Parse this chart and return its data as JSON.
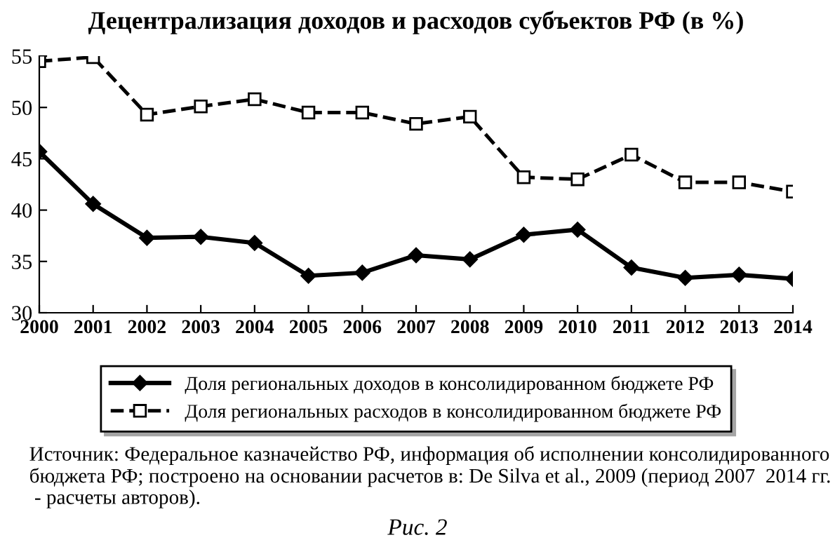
{
  "chart_data": {
    "type": "line",
    "title": "Децентрализация доходов и расходов субъектов РФ (в %)",
    "categories": [
      "2000",
      "2001",
      "2002",
      "2003",
      "2004",
      "2005",
      "2006",
      "2007",
      "2008",
      "2009",
      "2010",
      "2011",
      "2012",
      "2013",
      "2014"
    ],
    "series": [
      {
        "name": "Доля региональных доходов в консолидированном бюджете РФ",
        "color": "#000000",
        "marker": "diamond",
        "line_style": "solid",
        "values": [
          45.7,
          40.6,
          37.3,
          37.4,
          36.8,
          33.6,
          33.9,
          35.6,
          35.2,
          37.6,
          38.1,
          34.4,
          33.4,
          33.7,
          33.3
        ]
      },
      {
        "name": "Доля региональных расходов в консолидированном бюджете РФ",
        "color": "#000000",
        "marker": "square",
        "line_style": "dashed",
        "values": [
          54.5,
          54.9,
          49.3,
          50.1,
          50.8,
          49.5,
          49.5,
          48.4,
          49.1,
          43.2,
          43.0,
          45.4,
          42.7,
          42.7,
          41.8
        ]
      }
    ],
    "ylim": [
      30,
      55
    ],
    "yticks": [
      30,
      35,
      40,
      45,
      50,
      55
    ],
    "grid": false,
    "legend": "bottom",
    "annotations": [
      "Источник: Федеральное казначейство РФ, информация об исполнении консолидированного бюджета РФ; построено на основании расчетов в: De Silva et al., 2009 (период 2007  2014 гг.  - расчеты авторов).",
      "Рис. 2"
    ]
  }
}
